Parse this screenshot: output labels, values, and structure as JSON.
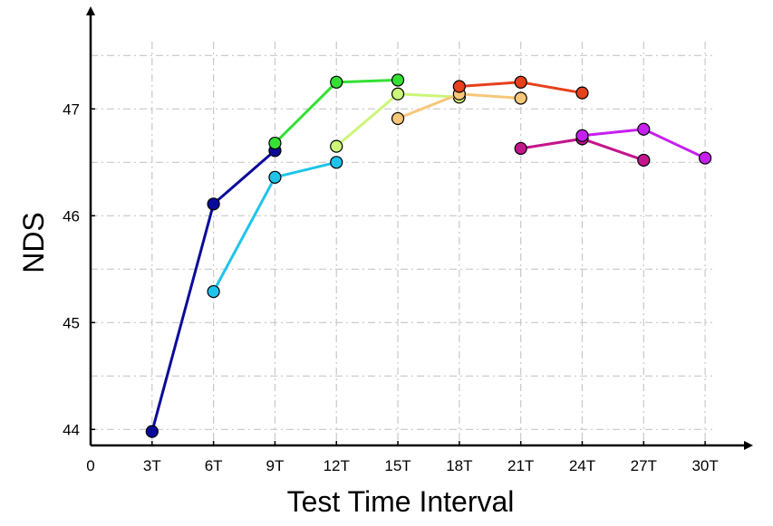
{
  "chart_data": {
    "type": "line",
    "xlabel": "Test Time Interval",
    "ylabel": "NDS",
    "x_ticks": [
      {
        "x": 0,
        "label": "0"
      },
      {
        "x": 3,
        "label": "3T"
      },
      {
        "x": 6,
        "label": "6T"
      },
      {
        "x": 9,
        "label": "9T"
      },
      {
        "x": 12,
        "label": "12T"
      },
      {
        "x": 15,
        "label": "15T"
      },
      {
        "x": 18,
        "label": "18T"
      },
      {
        "x": 21,
        "label": "21T"
      },
      {
        "x": 24,
        "label": "24T"
      },
      {
        "x": 27,
        "label": "27T"
      },
      {
        "x": 30,
        "label": "30T"
      }
    ],
    "y_ticks": [
      {
        "y": 44,
        "label": "44"
      },
      {
        "y": 45,
        "label": "45"
      },
      {
        "y": 46,
        "label": "46"
      },
      {
        "y": 47,
        "label": "47"
      }
    ],
    "xlim": [
      0,
      31.5
    ],
    "ylim": [
      43.85,
      47.85
    ],
    "grid": true,
    "series": [
      {
        "color": "#0a0a9a",
        "points": [
          [
            3,
            43.98
          ],
          [
            6,
            46.11
          ],
          [
            9,
            46.61
          ]
        ]
      },
      {
        "color": "#1fc4ea",
        "points": [
          [
            6,
            45.29
          ],
          [
            9,
            46.36
          ],
          [
            12,
            46.5
          ]
        ]
      },
      {
        "color": "#33e033",
        "points": [
          [
            9,
            46.68
          ],
          [
            12,
            47.25
          ],
          [
            15,
            47.27
          ]
        ]
      },
      {
        "color": "#ccf57a",
        "points": [
          [
            12,
            46.65
          ],
          [
            15,
            47.14
          ],
          [
            18,
            47.11
          ]
        ]
      },
      {
        "color": "#f7c77a",
        "points": [
          [
            15,
            46.91
          ],
          [
            18,
            47.14
          ],
          [
            21,
            47.1
          ]
        ]
      },
      {
        "color": "#e6401c",
        "points": [
          [
            18,
            47.21
          ],
          [
            21,
            47.25
          ],
          [
            24,
            47.15
          ]
        ]
      },
      {
        "color": "#c4168c",
        "points": [
          [
            21,
            46.63
          ],
          [
            24,
            46.72
          ],
          [
            27,
            46.52
          ]
        ]
      },
      {
        "color": "#c71ff0",
        "points": [
          [
            24,
            46.75
          ],
          [
            27,
            46.81
          ],
          [
            30,
            46.54
          ]
        ]
      }
    ]
  }
}
